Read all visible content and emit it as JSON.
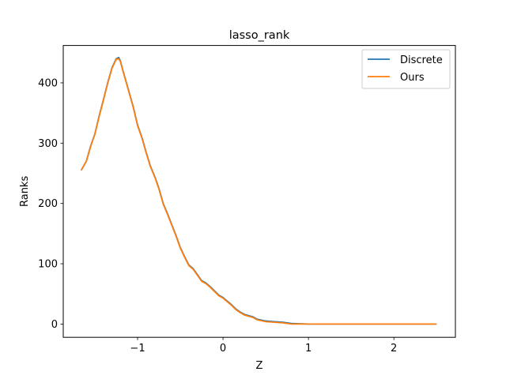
{
  "chart_data": {
    "type": "line",
    "title": "lasso_rank",
    "xlabel": "Z",
    "ylabel": "Ranks",
    "xlim": [
      -1.87,
      2.72
    ],
    "ylim": [
      -22,
      462
    ],
    "xticks": [
      -1,
      0,
      1,
      2
    ],
    "xtick_labels": [
      "−1",
      "0",
      "1",
      "2"
    ],
    "yticks": [
      0,
      100,
      200,
      300,
      400
    ],
    "ytick_labels": [
      "0",
      "100",
      "200",
      "300",
      "400"
    ],
    "grid": false,
    "legend": "upper-right",
    "series": [
      {
        "name": "Discrete",
        "color": "#1f77b4",
        "x": [
          -1.66,
          -1.6,
          -1.55,
          -1.5,
          -1.45,
          -1.4,
          -1.35,
          -1.3,
          -1.25,
          -1.22,
          -1.2,
          -1.18,
          -1.15,
          -1.1,
          -1.05,
          -1.0,
          -0.95,
          -0.9,
          -0.85,
          -0.8,
          -0.75,
          -0.7,
          -0.65,
          -0.6,
          -0.55,
          -0.5,
          -0.45,
          -0.4,
          -0.35,
          -0.3,
          -0.25,
          -0.2,
          -0.15,
          -0.1,
          -0.05,
          0.0,
          0.05,
          0.1,
          0.15,
          0.2,
          0.25,
          0.3,
          0.35,
          0.4,
          0.5,
          0.6,
          0.7,
          0.8,
          1.0,
          1.5,
          2.0,
          2.5
        ],
        "y": [
          255,
          270,
          295,
          315,
          345,
          372,
          400,
          425,
          440,
          442,
          436,
          425,
          410,
          385,
          360,
          330,
          310,
          285,
          262,
          245,
          225,
          200,
          183,
          165,
          147,
          127,
          112,
          98,
          92,
          82,
          72,
          68,
          62,
          55,
          48,
          44,
          38,
          32,
          25,
          20,
          16,
          14,
          12,
          8,
          5,
          4,
          3,
          1,
          0,
          0,
          0,
          0
        ]
      },
      {
        "name": "Ours",
        "color": "#ff7f0e",
        "x": [
          -1.66,
          -1.6,
          -1.55,
          -1.5,
          -1.45,
          -1.4,
          -1.35,
          -1.3,
          -1.25,
          -1.22,
          -1.2,
          -1.18,
          -1.15,
          -1.1,
          -1.05,
          -1.0,
          -0.95,
          -0.9,
          -0.85,
          -0.8,
          -0.75,
          -0.7,
          -0.65,
          -0.6,
          -0.55,
          -0.5,
          -0.45,
          -0.4,
          -0.35,
          -0.3,
          -0.25,
          -0.2,
          -0.15,
          -0.1,
          -0.05,
          0.0,
          0.05,
          0.1,
          0.15,
          0.2,
          0.25,
          0.3,
          0.35,
          0.4,
          0.5,
          0.6,
          0.7,
          0.8,
          1.0,
          1.5,
          2.0,
          2.5
        ],
        "y": [
          255,
          270,
          294,
          315,
          344,
          371,
          399,
          424,
          439,
          440,
          435,
          424,
          409,
          384,
          359,
          329,
          309,
          284,
          261,
          244,
          224,
          199,
          182,
          164,
          146,
          126,
          111,
          97,
          91,
          81,
          71,
          67,
          61,
          54,
          47,
          43,
          37,
          31,
          24,
          19,
          15,
          13,
          11,
          7,
          4,
          3,
          2,
          0,
          0,
          0,
          0,
          0
        ]
      }
    ]
  }
}
